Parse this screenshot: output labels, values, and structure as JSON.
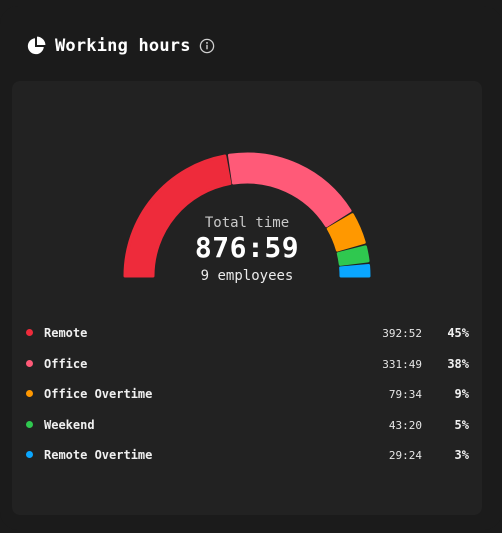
{
  "header": {
    "title": "Working hours",
    "title_icon": "pie-chart-icon",
    "info_icon": "info-icon"
  },
  "summary": {
    "label": "Total time",
    "value": "876:59",
    "employees": "9 employees"
  },
  "chart_data": {
    "type": "pie",
    "style": "half-donut",
    "total": "876:59",
    "slices": [
      {
        "name": "Remote",
        "time": "392:52",
        "percent_label": "45%",
        "value": 392.87,
        "color": "#ee2b3b"
      },
      {
        "name": "Office",
        "time": "331:49",
        "percent_label": "38%",
        "value": 331.82,
        "color": "#ff5a78"
      },
      {
        "name": "Office Overtime",
        "time": "79:34",
        "percent_label": "9%",
        "value": 79.57,
        "color": "#ff9800"
      },
      {
        "name": "Weekend",
        "time": "43:20",
        "percent_label": "5%",
        "value": 43.33,
        "color": "#2fc84f"
      },
      {
        "name": "Remote Overtime",
        "time": "29:24",
        "percent_label": "3%",
        "value": 29.4,
        "color": "#0aa6ff"
      }
    ]
  }
}
